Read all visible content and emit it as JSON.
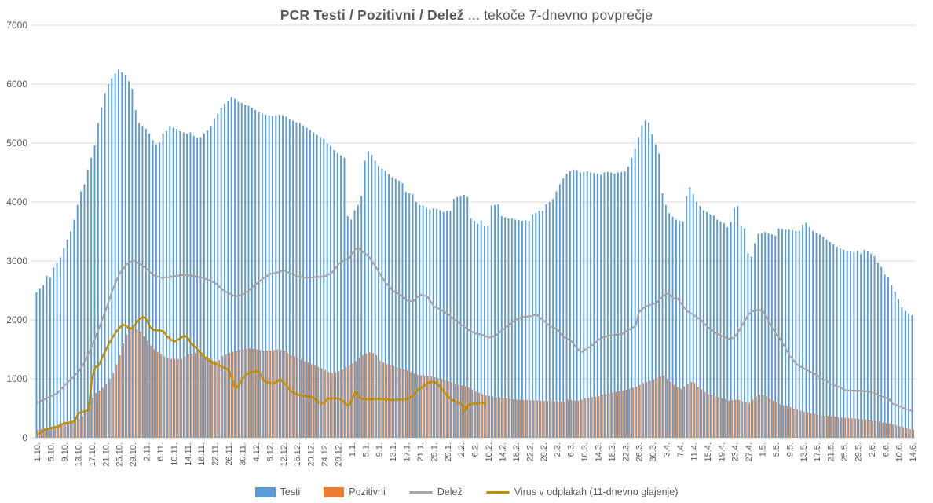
{
  "title": {
    "bold": "PCR Testi / Pozitivni / Delež",
    "regular": " ... tekoče 7-dnevno povprečje"
  },
  "colors": {
    "tests_blue": "#5B9BD5",
    "positives_orange": "#ED7D31",
    "share_gray": "#A5A5A5",
    "sewage_gold": "#BF8F00",
    "gridline": "#D9D9D9",
    "text": "#595959",
    "background": "#FFFFFF"
  },
  "chart_data": {
    "type": "bar",
    "title": "PCR Testi / Pozitivni / Delež ... tekoče 7-dnevno povprečje",
    "xlabel": "",
    "ylabel": "",
    "ylim": [
      0,
      7000
    ],
    "y_ticks": [
      0,
      1000,
      2000,
      3000,
      4000,
      5000,
      6000,
      7000
    ],
    "grid": "horizontal",
    "legend_position": "bottom",
    "x_tick_interval_days": 4,
    "x_tick_labels": [
      "1.10.",
      "5.10.",
      "9.10.",
      "13.10.",
      "17.10.",
      "21.10.",
      "25.10.",
      "29.10.",
      "2.11.",
      "6.11.",
      "10.11.",
      "14.11.",
      "18.11.",
      "22.11.",
      "26.11.",
      "30.11.",
      "4.12.",
      "8.12.",
      "12.12.",
      "16.12.",
      "20.12.",
      "24.12.",
      "28.12.",
      "1.1.",
      "5.1.",
      "9.1.",
      "13.1.",
      "17.1.",
      "21.1.",
      "25.1.",
      "29.1.",
      "2.2.",
      "6.2.",
      "10.2.",
      "14.2.",
      "18.2.",
      "22.2.",
      "26.2.",
      "2.3.",
      "6.3.",
      "10.3.",
      "14.3.",
      "18.3.",
      "22.3.",
      "26.3.",
      "30.3.",
      "3.4.",
      "7.4.",
      "11.4.",
      "15.4.",
      "19.4.",
      "23.4.",
      "27.4.",
      "1.5.",
      "5.5.",
      "9.5.",
      "13.5.",
      "17.5.",
      "21.5.",
      "25.5.",
      "29.5.",
      "2.6.",
      "6.6.",
      "10.6.",
      "14.6."
    ],
    "series": [
      {
        "name": "Testi",
        "type": "bar",
        "color": "#5B9BD5",
        "values": [
          2470,
          2530,
          2590,
          2750,
          2720,
          2890,
          2970,
          3060,
          3220,
          3360,
          3500,
          3700,
          3950,
          4180,
          4300,
          4550,
          4750,
          4960,
          5340,
          5600,
          5850,
          6000,
          6100,
          6180,
          6250,
          6200,
          6150,
          6050,
          5920,
          5560,
          5340,
          5290,
          5240,
          5160,
          5050,
          4980,
          5010,
          5160,
          5200,
          5290,
          5260,
          5240,
          5200,
          5180,
          5160,
          5180,
          5120,
          5090,
          5100,
          5160,
          5210,
          5290,
          5420,
          5500,
          5600,
          5670,
          5720,
          5780,
          5750,
          5700,
          5680,
          5650,
          5630,
          5600,
          5560,
          5530,
          5500,
          5480,
          5470,
          5460,
          5470,
          5480,
          5470,
          5450,
          5400,
          5380,
          5350,
          5340,
          5300,
          5260,
          5220,
          5180,
          5140,
          5100,
          5070,
          4990,
          4950,
          4880,
          4830,
          4790,
          4750,
          3760,
          3700,
          3860,
          3950,
          4100,
          4700,
          4860,
          4800,
          4700,
          4610,
          4560,
          4530,
          4470,
          4420,
          4390,
          4360,
          4320,
          4170,
          4150,
          4130,
          4000,
          3950,
          3940,
          3900,
          3870,
          3890,
          3880,
          3860,
          3830,
          3850,
          3850,
          4050,
          4080,
          4100,
          4120,
          4090,
          3720,
          3680,
          3630,
          3690,
          3590,
          3600,
          3940,
          3950,
          3960,
          3760,
          3740,
          3720,
          3720,
          3700,
          3690,
          3680,
          3690,
          3680,
          3790,
          3810,
          3850,
          3850,
          3960,
          4000,
          4050,
          4180,
          4300,
          4400,
          4480,
          4520,
          4550,
          4540,
          4500,
          4510,
          4520,
          4500,
          4490,
          4480,
          4460,
          4500,
          4510,
          4500,
          4480,
          4500,
          4510,
          4520,
          4600,
          4750,
          4900,
          5100,
          5300,
          5380,
          5350,
          5150,
          4980,
          4820,
          4150,
          3950,
          3810,
          3750,
          3700,
          3680,
          3670,
          4100,
          4250,
          4130,
          4000,
          3930,
          3860,
          3830,
          3790,
          3770,
          3700,
          3670,
          3640,
          3570,
          3660,
          3900,
          3930,
          3590,
          3550,
          3130,
          3070,
          3300,
          3460,
          3470,
          3490,
          3470,
          3450,
          3430,
          3550,
          3540,
          3530,
          3530,
          3520,
          3510,
          3510,
          3610,
          3650,
          3570,
          3510,
          3480,
          3450,
          3410,
          3360,
          3320,
          3280,
          3240,
          3210,
          3190,
          3170,
          3160,
          3150,
          3170,
          3120,
          3190,
          3160,
          3120,
          3080,
          2970,
          2900,
          2770,
          2730,
          2590,
          2480,
          2350,
          2210,
          2150,
          2110,
          2080
        ]
      },
      {
        "name": "Pozitivni",
        "type": "bar",
        "color": "#ED7D31",
        "values": [
          140,
          150,
          165,
          175,
          190,
          205,
          220,
          240,
          260,
          275,
          290,
          305,
          320,
          370,
          430,
          550,
          680,
          760,
          800,
          850,
          920,
          1000,
          1100,
          1250,
          1400,
          1600,
          1750,
          1870,
          1880,
          1840,
          1800,
          1720,
          1650,
          1570,
          1500,
          1460,
          1420,
          1380,
          1350,
          1340,
          1330,
          1335,
          1340,
          1380,
          1420,
          1430,
          1440,
          1450,
          1420,
          1380,
          1350,
          1320,
          1300,
          1320,
          1390,
          1420,
          1440,
          1460,
          1470,
          1490,
          1500,
          1510,
          1520,
          1510,
          1500,
          1490,
          1480,
          1480,
          1480,
          1490,
          1500,
          1490,
          1480,
          1440,
          1400,
          1380,
          1350,
          1330,
          1300,
          1280,
          1250,
          1230,
          1200,
          1180,
          1150,
          1120,
          1100,
          1110,
          1130,
          1160,
          1200,
          1230,
          1260,
          1300,
          1350,
          1400,
          1430,
          1450,
          1440,
          1400,
          1310,
          1280,
          1250,
          1230,
          1220,
          1200,
          1180,
          1160,
          1150,
          1120,
          1090,
          1070,
          1060,
          1055,
          1050,
          1045,
          1030,
          1010,
          1000,
          980,
          960,
          940,
          920,
          900,
          890,
          875,
          850,
          820,
          790,
          765,
          740,
          720,
          710,
          700,
          690,
          685,
          675,
          670,
          660,
          650,
          648,
          645,
          643,
          640,
          638,
          635,
          633,
          630,
          628,
          626,
          625,
          620,
          618,
          615,
          612,
          650,
          640,
          630,
          630,
          650,
          670,
          680,
          690,
          695,
          700,
          730,
          740,
          755,
          770,
          780,
          790,
          800,
          815,
          830,
          850,
          870,
          900,
          930,
          950,
          970,
          990,
          1020,
          1050,
          1060,
          1000,
          950,
          900,
          860,
          830,
          870,
          920,
          950,
          930,
          860,
          820,
          780,
          740,
          720,
          700,
          690,
          670,
          660,
          630,
          640,
          645,
          640,
          620,
          600,
          590,
          650,
          700,
          730,
          720,
          700,
          660,
          630,
          600,
          570,
          555,
          540,
          520,
          500,
          480,
          460,
          440,
          430,
          415,
          400,
          390,
          380,
          375,
          370,
          365,
          360,
          350,
          345,
          340,
          335,
          330,
          325,
          320,
          315,
          310,
          300,
          290,
          280,
          270,
          260,
          250,
          240,
          225,
          210,
          195,
          180,
          165,
          150,
          135
        ]
      },
      {
        "name": "Delež",
        "type": "line",
        "color": "#A5A5A5",
        "values": [
          600,
          620,
          650,
          675,
          700,
          730,
          760,
          825,
          890,
          945,
          1000,
          1060,
          1120,
          1210,
          1300,
          1425,
          1550,
          1700,
          1850,
          2000,
          2150,
          2330,
          2500,
          2640,
          2780,
          2860,
          2930,
          2980,
          3010,
          2980,
          2950,
          2910,
          2870,
          2815,
          2760,
          2740,
          2720,
          2720,
          2720,
          2730,
          2740,
          2750,
          2760,
          2760,
          2760,
          2750,
          2740,
          2730,
          2720,
          2700,
          2680,
          2655,
          2630,
          2575,
          2520,
          2485,
          2450,
          2425,
          2400,
          2415,
          2430,
          2465,
          2500,
          2555,
          2610,
          2655,
          2700,
          2740,
          2780,
          2790,
          2800,
          2820,
          2840,
          2815,
          2790,
          2765,
          2740,
          2730,
          2720,
          2720,
          2720,
          2725,
          2730,
          2735,
          2740,
          2765,
          2790,
          2865,
          2940,
          2985,
          3030,
          3030,
          3115,
          3200,
          3220,
          3160,
          3115,
          3070,
          2985,
          2900,
          2800,
          2710,
          2620,
          2555,
          2490,
          2460,
          2430,
          2390,
          2330,
          2320,
          2320,
          2375,
          2430,
          2415,
          2400,
          2315,
          2230,
          2200,
          2170,
          2135,
          2100,
          2055,
          2010,
          1965,
          1920,
          1880,
          1840,
          1805,
          1770,
          1760,
          1750,
          1725,
          1700,
          1715,
          1730,
          1780,
          1830,
          1875,
          1920,
          1960,
          2000,
          2030,
          2050,
          2055,
          2060,
          2075,
          2090,
          2040,
          1990,
          1940,
          1890,
          1865,
          1840,
          1775,
          1710,
          1680,
          1650,
          1580,
          1510,
          1450,
          1487,
          1523,
          1560,
          1607,
          1653,
          1700,
          1713,
          1727,
          1740,
          1747,
          1753,
          1760,
          1795,
          1830,
          1865,
          1900,
          2140,
          2190,
          2230,
          2250,
          2270,
          2290,
          2350,
          2400,
          2450,
          2430,
          2360,
          2380,
          2300,
          2225,
          2150,
          2115,
          2080,
          2040,
          2000,
          1940,
          1880,
          1835,
          1790,
          1760,
          1730,
          1705,
          1680,
          1680,
          1720,
          1800,
          1900,
          2000,
          2093,
          2140,
          2160,
          2170,
          2160,
          2060,
          1960,
          1860,
          1760,
          1700,
          1600,
          1500,
          1390,
          1320,
          1250,
          1215,
          1180,
          1150,
          1120,
          1090,
          1060,
          1010,
          985,
          960,
          915,
          890,
          870,
          850,
          810,
          805,
          800,
          800,
          795,
          795,
          790,
          785,
          775,
          760,
          715,
          700,
          680,
          660,
          580,
          560,
          540,
          510,
          490,
          470,
          450
        ]
      },
      {
        "name": "Virus v odplakah (11-dnevno glajenje)",
        "type": "line",
        "color": "#BF8F00",
        "values": [
          60,
          80,
          130,
          150,
          165,
          172,
          190,
          225,
          250,
          255,
          262,
          290,
          415,
          435,
          450,
          468,
          1000,
          1195,
          1230,
          1360,
          1480,
          1600,
          1700,
          1790,
          1860,
          1920,
          1900,
          1840,
          1880,
          1950,
          2020,
          2050,
          2010,
          1880,
          1830,
          1825,
          1820,
          1800,
          1720,
          1670,
          1630,
          1660,
          1700,
          1730,
          1700,
          1600,
          1550,
          1490,
          1430,
          1370,
          1320,
          1280,
          1260,
          1240,
          1200,
          1180,
          1150,
          1000,
          830,
          900,
          1000,
          1070,
          1100,
          1120,
          1130,
          1110,
          990,
          950,
          930,
          920,
          950,
          990,
          940,
          880,
          800,
          760,
          730,
          720,
          710,
          700,
          700,
          670,
          620,
          575,
          600,
          665,
          670,
          670,
          660,
          640,
          580,
          537,
          650,
          787,
          700,
          660,
          655,
          650,
          655,
          660,
          660,
          655,
          650,
          645,
          640,
          645,
          650,
          650,
          655,
          680,
          720,
          800,
          840,
          870,
          930,
          945,
          950,
          920,
          840,
          780,
          700,
          650,
          620,
          600,
          587,
          453,
          560,
          575,
          580,
          585,
          588,
          590
        ]
      }
    ]
  }
}
